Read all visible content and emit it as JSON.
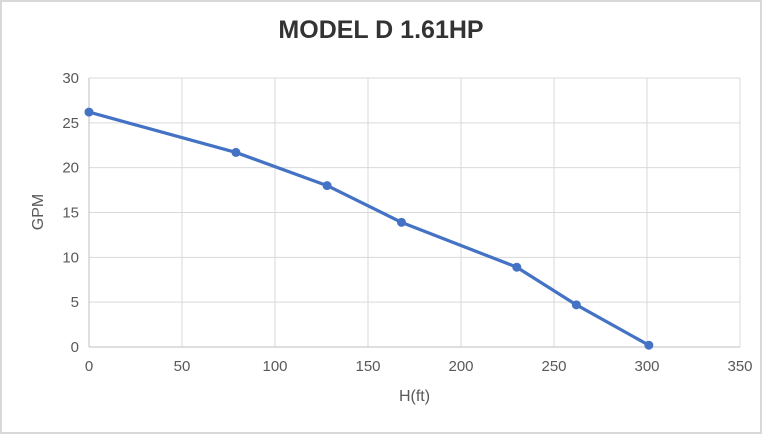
{
  "chart_data": {
    "type": "line",
    "title": "MODEL D 1.61HP",
    "xlabel": "H(ft)",
    "ylabel": "GPM",
    "x": [
      0,
      79,
      128,
      168,
      230,
      262,
      301
    ],
    "y": [
      26.2,
      21.7,
      18.0,
      13.9,
      8.9,
      4.7,
      0.2
    ],
    "xlim": [
      0,
      350
    ],
    "ylim": [
      0,
      30
    ],
    "x_ticks": [
      0,
      50,
      100,
      150,
      200,
      250,
      300,
      350
    ],
    "y_ticks": [
      0,
      5,
      10,
      15,
      20,
      25,
      30
    ],
    "grid": true,
    "legend": false,
    "marker": "circle",
    "colors": {
      "line": "#4472C4",
      "marker": "#4472C4",
      "grid": "#D9D9D9",
      "axis": "#BFBFBF",
      "tick_text": "#595959",
      "title_text": "#333333"
    }
  }
}
